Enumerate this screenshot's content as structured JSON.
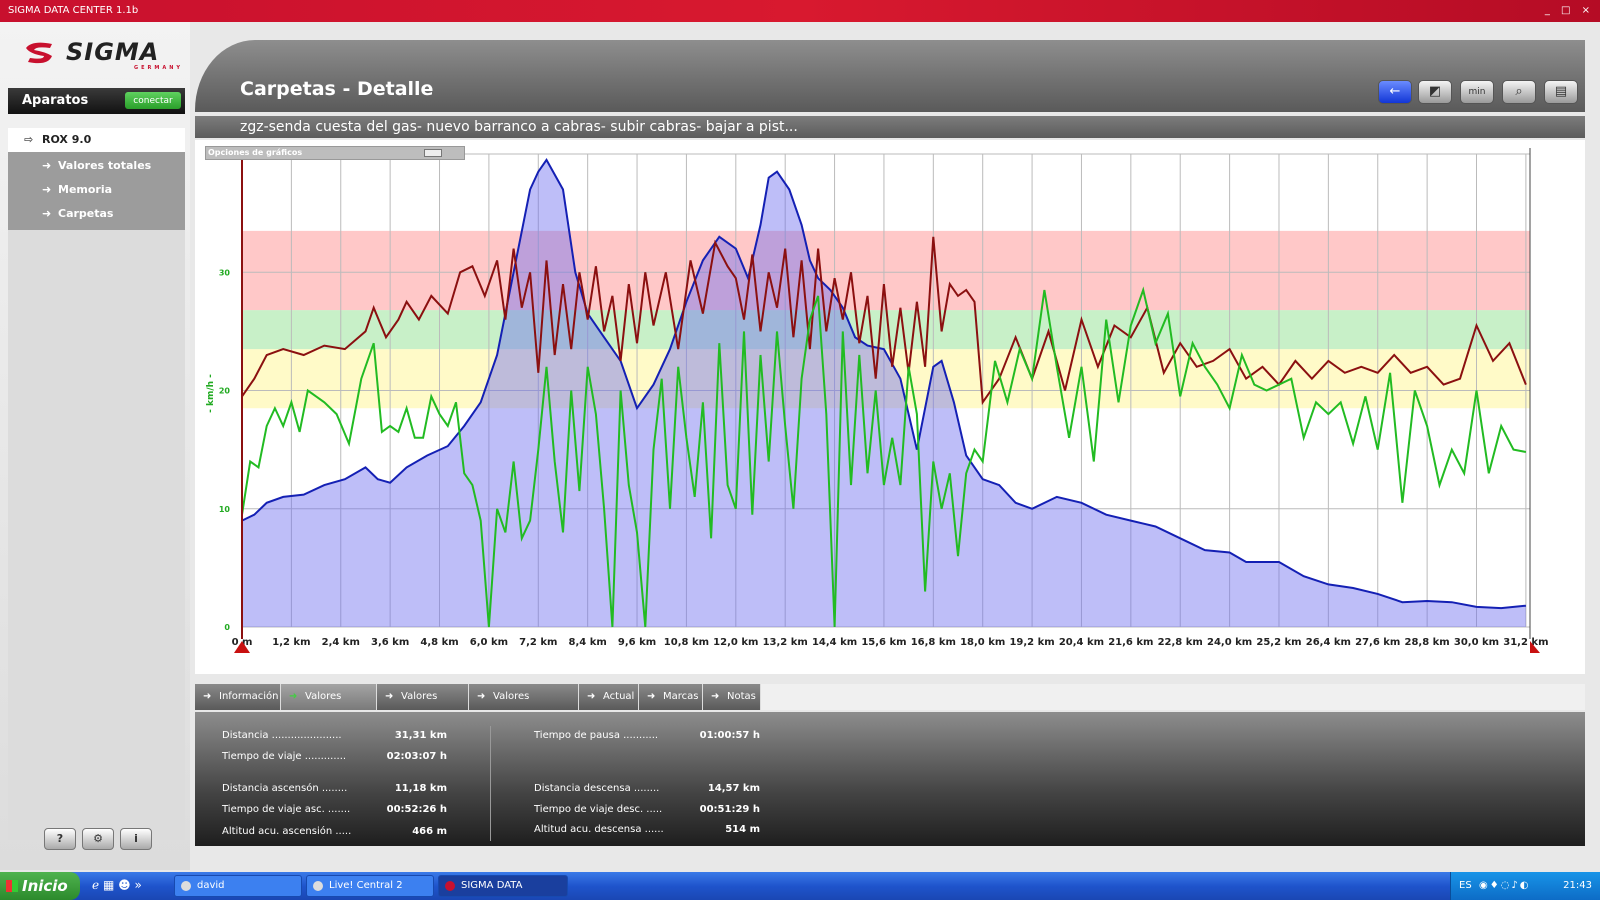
{
  "window": {
    "title": "SIGMA DATA CENTER 1.1b",
    "controls": "_ □ ×"
  },
  "logo": {
    "text": "SIGMA",
    "sub": "GERMANY"
  },
  "sidebar": {
    "header": "Aparatos",
    "connect_label": "conectar",
    "device": "ROX 9.0",
    "items": [
      {
        "label": "Valores totales"
      },
      {
        "label": "Memoria"
      },
      {
        "label": "Carpetas"
      }
    ],
    "tools": [
      {
        "label": "?"
      },
      {
        "label": "⚙"
      },
      {
        "label": "i"
      }
    ]
  },
  "header": {
    "title": "Carpetas - Detalle"
  },
  "toolbar": {
    "back_icon": "←",
    "icon2": "◩",
    "icon3": "min",
    "icon4": "⌕",
    "icon5": "▤"
  },
  "subtitle": "zgz-senda cuesta del gas- nuevo barranco a cabras- subir cabras- bajar a pist...",
  "options_label": "Opciones de gráficos",
  "chart_data": {
    "type": "line",
    "ylabel": "- km/h -",
    "ylim": [
      0,
      40
    ],
    "yticks": [
      "0",
      "10",
      "20",
      "30",
      "40"
    ],
    "xlim": [
      0,
      31.3
    ],
    "xticks": [
      "0 m",
      "1,2 km",
      "2,4 km",
      "3,6 km",
      "4,8 km",
      "6,0 km",
      "7,2 km",
      "8,4 km",
      "9,6 km",
      "10,8 km",
      "12,0 km",
      "13,2 km",
      "14,4 km",
      "15,6 km",
      "16,8 km",
      "18,0 km",
      "19,2 km",
      "20,4 km",
      "21,6 km",
      "22,8 km",
      "24,0 km",
      "25,2 km",
      "26,4 km",
      "27,6 km",
      "28,8 km",
      "30,0 km",
      "31,2 km"
    ],
    "zones": [
      {
        "from": 18.5,
        "to": 23.5,
        "color": "#fffac8"
      },
      {
        "from": 23.5,
        "to": 26.8,
        "color": "#c8f0c8"
      },
      {
        "from": 26.8,
        "to": 33.5,
        "color": "#ffc8c8"
      }
    ],
    "series": [
      {
        "color": "#1420b4",
        "fill": "rgba(110,110,240,0.45)",
        "x": [
          0,
          0.3,
          0.6,
          1.0,
          1.5,
          2.0,
          2.5,
          3.0,
          3.3,
          3.6,
          4.0,
          4.5,
          5.0,
          5.4,
          5.8,
          6.2,
          6.6,
          7.0,
          7.2,
          7.4,
          7.8,
          8.1,
          8.4,
          8.8,
          9.2,
          9.6,
          10.0,
          10.4,
          10.8,
          11.2,
          11.6,
          12.0,
          12.3,
          12.6,
          12.8,
          13.0,
          13.3,
          13.6,
          13.8,
          14.0,
          14.3,
          14.6,
          14.9,
          15.2,
          15.6,
          16.0,
          16.4,
          16.8,
          17.0,
          17.3,
          17.6,
          18.0,
          18.4,
          18.8,
          19.2,
          19.8,
          20.4,
          21.0,
          21.6,
          22.2,
          22.8,
          23.4,
          24.0,
          24.4,
          24.8,
          25.2,
          25.8,
          26.4,
          27.0,
          27.6,
          28.2,
          28.8,
          29.4,
          30.0,
          30.6,
          31.2
        ],
        "y": [
          9,
          9.5,
          10.5,
          11,
          11.2,
          12,
          12.5,
          13.5,
          12.5,
          12.2,
          13.5,
          14.5,
          15.3,
          17,
          19,
          23,
          30,
          37,
          38.5,
          39.5,
          37,
          30,
          26.5,
          24.5,
          22.5,
          18.5,
          20.5,
          23.5,
          27.5,
          31,
          33,
          32,
          29.5,
          34,
          38,
          38.5,
          37,
          34,
          31,
          29.5,
          28.5,
          27,
          24.5,
          23.8,
          23.5,
          21,
          15,
          22,
          22.5,
          19,
          14.5,
          12.5,
          12,
          10.5,
          10,
          11,
          10.5,
          9.5,
          9,
          8.5,
          7.5,
          6.5,
          6.3,
          5.5,
          5.5,
          5.5,
          4.3,
          3.6,
          3.3,
          2.8,
          2.1,
          2.2,
          2.1,
          1.7,
          1.6,
          1.8
        ]
      },
      {
        "color": "#8b1010",
        "x": [
          0,
          0.3,
          0.6,
          1.0,
          1.5,
          2.0,
          2.5,
          3.0,
          3.2,
          3.5,
          3.8,
          4.0,
          4.3,
          4.6,
          5.0,
          5.3,
          5.6,
          5.9,
          6.2,
          6.4,
          6.6,
          6.8,
          7.0,
          7.2,
          7.4,
          7.6,
          7.8,
          8.0,
          8.2,
          8.4,
          8.6,
          8.8,
          9.0,
          9.2,
          9.4,
          9.6,
          9.8,
          10.0,
          10.3,
          10.6,
          10.9,
          11.2,
          11.5,
          11.8,
          12.0,
          12.2,
          12.4,
          12.6,
          12.8,
          13.0,
          13.2,
          13.4,
          13.6,
          13.8,
          14.0,
          14.2,
          14.4,
          14.6,
          14.8,
          15.0,
          15.2,
          15.4,
          15.6,
          15.8,
          16.0,
          16.2,
          16.4,
          16.6,
          16.8,
          17.0,
          17.2,
          17.4,
          17.6,
          17.8,
          18.0,
          18.4,
          18.8,
          19.2,
          19.6,
          20.0,
          20.4,
          20.8,
          21.2,
          21.6,
          22.0,
          22.4,
          22.8,
          23.2,
          23.6,
          24.0,
          24.4,
          24.8,
          25.2,
          25.6,
          26.0,
          26.4,
          26.8,
          27.2,
          27.6,
          28.0,
          28.4,
          28.8,
          29.2,
          29.6,
          30.0,
          30.4,
          30.8,
          31.2
        ],
        "y": [
          19.5,
          21,
          23,
          23.5,
          23,
          23.8,
          23.5,
          25,
          27,
          24.5,
          26,
          27.5,
          26,
          28,
          26.5,
          30,
          30.5,
          28,
          31,
          26,
          32,
          27,
          30,
          21.5,
          31,
          23,
          29,
          23.5,
          30,
          26,
          30.5,
          25,
          28,
          22.5,
          29,
          24,
          30,
          25.5,
          30,
          23.5,
          31,
          26.5,
          32.5,
          30.5,
          29.5,
          26,
          31.5,
          25,
          30,
          27,
          32,
          24.5,
          31,
          23.5,
          32,
          25,
          29.5,
          26,
          30,
          24,
          28,
          21,
          29,
          22,
          27,
          21.5,
          27.5,
          22,
          33,
          25,
          29,
          28,
          28.5,
          27.5,
          19,
          21,
          24.5,
          21,
          25,
          20,
          26,
          22,
          25.5,
          24.5,
          27,
          21.5,
          24,
          22,
          22.5,
          23.5,
          21,
          22,
          20.5,
          22.5,
          21,
          22.5,
          21.5,
          22,
          21.5,
          23,
          21.5,
          22,
          20.5,
          21,
          25.5,
          22.5,
          24,
          20.5
        ]
      },
      {
        "color": "#22bb22",
        "x": [
          0,
          0.2,
          0.4,
          0.6,
          0.8,
          1.0,
          1.2,
          1.4,
          1.6,
          1.8,
          2.0,
          2.3,
          2.6,
          2.9,
          3.2,
          3.4,
          3.6,
          3.8,
          4.0,
          4.2,
          4.4,
          4.6,
          4.8,
          5.0,
          5.2,
          5.4,
          5.6,
          5.8,
          6.0,
          6.2,
          6.4,
          6.6,
          6.8,
          7.0,
          7.2,
          7.4,
          7.6,
          7.8,
          8.0,
          8.2,
          8.4,
          8.6,
          8.8,
          9.0,
          9.2,
          9.4,
          9.6,
          9.8,
          10.0,
          10.2,
          10.4,
          10.6,
          10.8,
          11.0,
          11.2,
          11.4,
          11.6,
          11.8,
          12.0,
          12.2,
          12.4,
          12.6,
          12.8,
          13.0,
          13.2,
          13.4,
          13.6,
          13.8,
          14.0,
          14.2,
          14.4,
          14.6,
          14.8,
          15.0,
          15.2,
          15.4,
          15.6,
          15.8,
          16.0,
          16.2,
          16.4,
          16.6,
          16.8,
          17.0,
          17.2,
          17.4,
          17.6,
          17.8,
          18.0,
          18.3,
          18.6,
          18.9,
          19.2,
          19.5,
          19.8,
          20.1,
          20.4,
          20.7,
          21.0,
          21.3,
          21.6,
          21.9,
          22.2,
          22.5,
          22.8,
          23.1,
          23.4,
          23.7,
          24.0,
          24.3,
          24.6,
          24.9,
          25.2,
          25.5,
          25.8,
          26.1,
          26.4,
          26.7,
          27.0,
          27.3,
          27.6,
          27.9,
          28.2,
          28.5,
          28.8,
          29.1,
          29.4,
          29.7,
          30.0,
          30.3,
          30.6,
          30.9,
          31.2
        ],
        "y": [
          9.5,
          14,
          13.5,
          17,
          18.5,
          17,
          19,
          16.5,
          20,
          19.5,
          19,
          18,
          15.5,
          21,
          24,
          16.5,
          17,
          16.5,
          18.5,
          16,
          16,
          19.5,
          18,
          17,
          19,
          13,
          12,
          9,
          0,
          10,
          8,
          14,
          7.5,
          9,
          15,
          22,
          14,
          8,
          20,
          11.5,
          22,
          18,
          10,
          0,
          20,
          12,
          8,
          0,
          15,
          21,
          10,
          22,
          16,
          11,
          19,
          7.5,
          24,
          12,
          10,
          25,
          9.5,
          23,
          14,
          25,
          17,
          10,
          21,
          26,
          28,
          18,
          0,
          25,
          12,
          23,
          13,
          20,
          12,
          16,
          12,
          22,
          18,
          3,
          14,
          10,
          13,
          6,
          13,
          15,
          14,
          22.5,
          19,
          23.5,
          21,
          28.5,
          22,
          16,
          22,
          14,
          26,
          19,
          25.5,
          28.5,
          24,
          26.5,
          19.5,
          24,
          22,
          20.5,
          18.5,
          23,
          20.5,
          20,
          20.5,
          21,
          16,
          19,
          18,
          19,
          15.5,
          19.5,
          15,
          21.5,
          10.5,
          20,
          17,
          12,
          15,
          13,
          20,
          13,
          17,
          15,
          14.8
        ]
      }
    ]
  },
  "tabs": [
    {
      "label": "Información"
    },
    {
      "label": "Valores totales"
    },
    {
      "label": "Valores media"
    },
    {
      "label": "Valores máx./mín."
    },
    {
      "label": "Actual"
    },
    {
      "label": "Marcas"
    },
    {
      "label": "Notas"
    }
  ],
  "stats": {
    "left": [
      {
        "label": "Distancia ......................",
        "value": "31,31 km"
      },
      {
        "label": "Tiempo de viaje .............",
        "value": "02:03:07 h"
      },
      {
        "label": "Distancia ascensón ........",
        "value": "11,18 km"
      },
      {
        "label": "Tiempo de viaje asc. .......",
        "value": "00:52:26 h"
      },
      {
        "label": "Altitud acu. ascensión .....",
        "value": "466 m"
      }
    ],
    "right": [
      {
        "label": "Tiempo de pausa ...........",
        "value": "01:00:57 h"
      },
      {
        "label": "Distancia descensa ........",
        "value": "14,57 km"
      },
      {
        "label": "Tiempo de viaje desc. .....",
        "value": "00:51:29 h"
      },
      {
        "label": "Altitud acu. descensa ......",
        "value": "514 m"
      }
    ]
  },
  "taskbar": {
    "start": "Inicio",
    "tasks": [
      {
        "label": "david <trepante@ho..."
      },
      {
        "label": "Live! Central 2"
      },
      {
        "label": "SIGMA DATA CENTE..."
      }
    ],
    "lang": "ES",
    "clock": "21:43"
  }
}
